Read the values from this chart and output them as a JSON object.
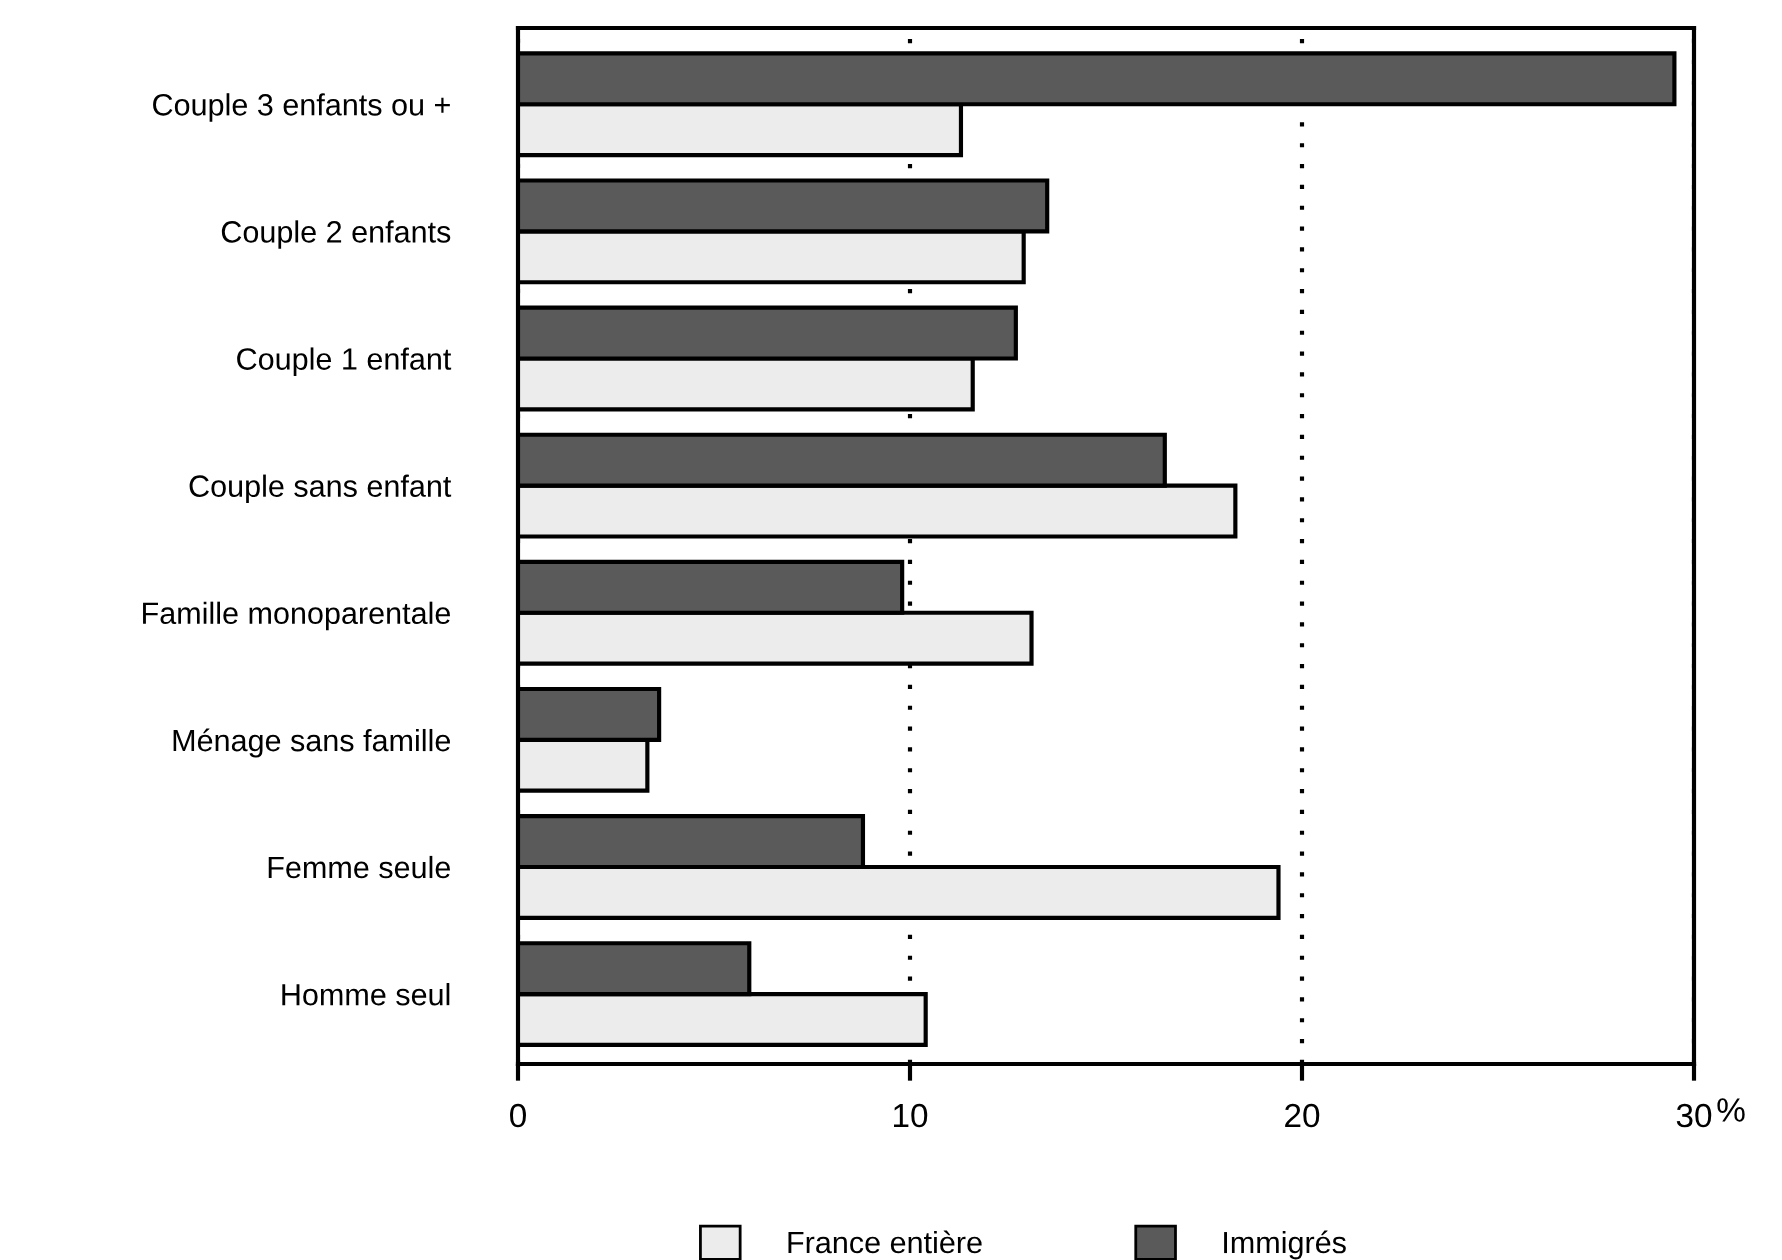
{
  "chart_data": {
    "type": "bar",
    "orientation": "horizontal",
    "categories": [
      "Couple 3 enfants ou +",
      "Couple 2 enfants",
      "Couple 1 enfant",
      "Couple sans enfant",
      "Famille monoparentale",
      "Ménage sans famille",
      "Femme seule",
      "Homme seul"
    ],
    "series": [
      {
        "name": "France entière",
        "color": "#ececec",
        "values": [
          11.3,
          12.9,
          11.6,
          18.3,
          13.1,
          3.3,
          19.4,
          10.4
        ]
      },
      {
        "name": "Immigrés",
        "color": "#5a5a5a",
        "values": [
          29.5,
          13.5,
          12.7,
          16.5,
          9.8,
          3.6,
          8.8,
          5.9
        ]
      }
    ],
    "xlabel": "%",
    "xlim": [
      0,
      30
    ],
    "xticks": [
      0,
      10,
      20,
      30
    ],
    "grid": "x",
    "legend": "bottom"
  }
}
